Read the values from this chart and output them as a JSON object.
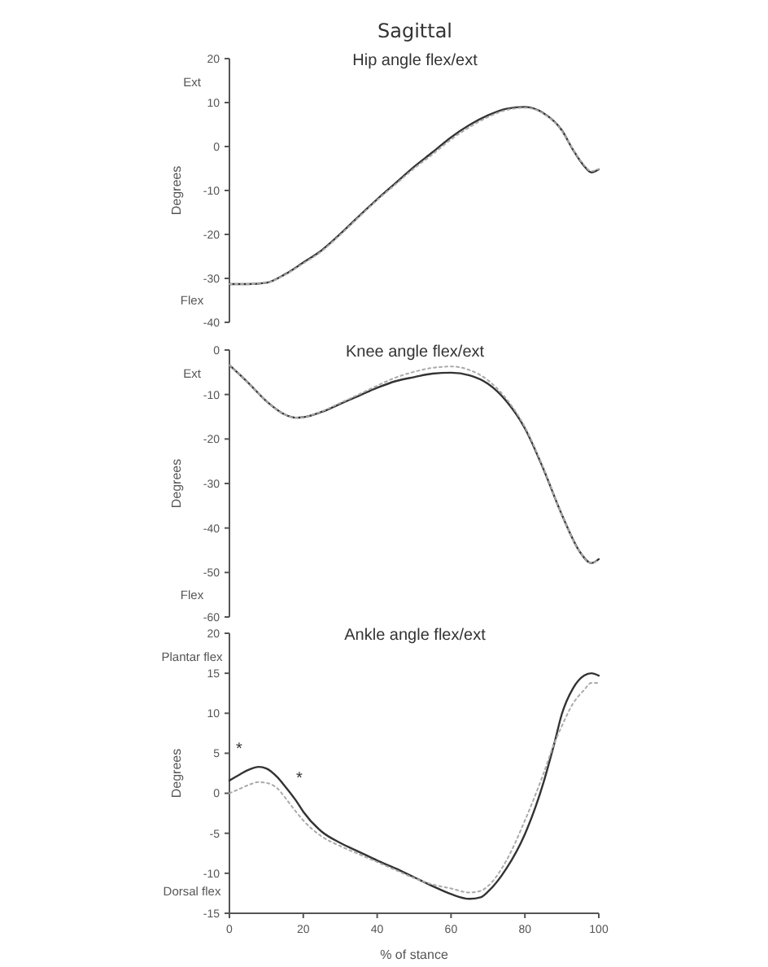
{
  "chart_data": [
    {
      "type": "line",
      "title": "Sagittal",
      "subtitle": "Hip angle flex/ext",
      "ylabel": "Degrees",
      "annotations": [
        "Ext",
        "Flex"
      ],
      "xlim": [
        0,
        100
      ],
      "ylim": [
        -40,
        20
      ],
      "yticks": [
        -40,
        -30,
        -20,
        -10,
        0,
        10,
        20
      ],
      "tick_labels": "y",
      "marker": "none",
      "x": [
        0,
        5,
        10,
        15,
        20,
        25,
        30,
        35,
        40,
        45,
        50,
        55,
        60,
        65,
        70,
        75,
        80,
        85,
        90,
        93,
        96,
        98,
        100
      ],
      "series": [
        {
          "color": "#333333",
          "line_style": "solid",
          "values": [
            -31.3,
            -31.3,
            -31,
            -29.1,
            -26.4,
            -23.6,
            -19.9,
            -15.9,
            -12,
            -8.3,
            -4.6,
            -1.3,
            2.1,
            4.9,
            7.1,
            8.6,
            9,
            7.6,
            3.7,
            -0.7,
            -4.4,
            -5.9,
            -5.2
          ]
        },
        {
          "color": "#aaaaaa",
          "line_style": "dotted",
          "values": [
            -31.3,
            -31.3,
            -31,
            -29.2,
            -26.6,
            -23.8,
            -20.1,
            -16.1,
            -12.2,
            -8.6,
            -5,
            -1.8,
            1.6,
            4.4,
            6.7,
            8.3,
            8.8,
            7.5,
            3.6,
            -0.6,
            -4.2,
            -5.6,
            -5.1
          ]
        }
      ]
    },
    {
      "type": "line",
      "title": "Knee angle flex/ext",
      "ylabel": "Degrees",
      "annotations": [
        "Ext",
        "Flex"
      ],
      "xlim": [
        0,
        100
      ],
      "ylim": [
        -60,
        0
      ],
      "yticks": [
        -60,
        -50,
        -40,
        -30,
        -20,
        -10,
        0
      ],
      "tick_labels": "y",
      "marker": "none",
      "x": [
        0,
        5,
        10,
        15,
        18,
        20,
        25,
        30,
        35,
        40,
        45,
        50,
        55,
        60,
        65,
        70,
        75,
        80,
        85,
        90,
        95,
        98,
        100
      ],
      "series": [
        {
          "color": "#333333",
          "line_style": "solid",
          "values": [
            -3.4,
            -7.3,
            -11.5,
            -14.5,
            -15.2,
            -15.1,
            -13.9,
            -12.1,
            -10.3,
            -8.5,
            -7,
            -6.1,
            -5.3,
            -5.1,
            -5.7,
            -7.6,
            -11.5,
            -17.6,
            -26.7,
            -37,
            -45.5,
            -47.9,
            -47
          ]
        },
        {
          "color": "#aaaaaa",
          "line_style": "dotted",
          "values": [
            -3.4,
            -7.3,
            -11.5,
            -14.5,
            -15.2,
            -15.1,
            -13.8,
            -11.9,
            -10,
            -8,
            -6.2,
            -4.9,
            -4,
            -3.7,
            -4.5,
            -6.8,
            -11,
            -17.3,
            -26.5,
            -37,
            -45.5,
            -47.9,
            -47
          ]
        }
      ]
    },
    {
      "type": "line",
      "title": "Ankle angle flex/ext",
      "xlabel": "% of stance",
      "ylabel": "Degrees",
      "annotations": [
        "Plantar flex",
        "Dorsal flex",
        "*",
        "*"
      ],
      "xlim": [
        0,
        100
      ],
      "xticks": [
        0,
        20,
        40,
        60,
        80,
        100
      ],
      "ylim": [
        -15,
        20
      ],
      "yticks": [
        -15,
        -10,
        -5,
        0,
        5,
        10,
        15,
        20
      ],
      "marker": "none",
      "x": [
        0,
        3,
        5,
        8,
        10,
        13,
        15,
        18,
        20,
        25,
        30,
        35,
        40,
        45,
        50,
        55,
        60,
        65,
        68,
        70,
        75,
        80,
        85,
        88,
        90,
        93,
        96,
        98,
        100
      ],
      "series": [
        {
          "color": "#333333",
          "line_style": "solid",
          "values": [
            1.6,
            2.4,
            2.9,
            3.3,
            3.1,
            2,
            0.9,
            -0.9,
            -2.3,
            -4.8,
            -6.2,
            -7.3,
            -8.4,
            -9.4,
            -10.5,
            -11.6,
            -12.6,
            -13.2,
            -13,
            -12.3,
            -9.4,
            -5.1,
            1.3,
            6.3,
            9.9,
            13.1,
            14.7,
            15,
            14.7
          ]
        },
        {
          "color": "#aaaaaa",
          "line_style": "dotted",
          "values": [
            0,
            0.6,
            1,
            1.4,
            1.3,
            0.6,
            -0.5,
            -2.3,
            -3.4,
            -5.4,
            -6.6,
            -7.6,
            -8.6,
            -9.6,
            -10.6,
            -11.4,
            -11.9,
            -12.4,
            -12.2,
            -11.6,
            -8.4,
            -3.4,
            2.4,
            6.3,
            8.4,
            11.2,
            12.9,
            13.8,
            13.8
          ]
        }
      ]
    }
  ]
}
